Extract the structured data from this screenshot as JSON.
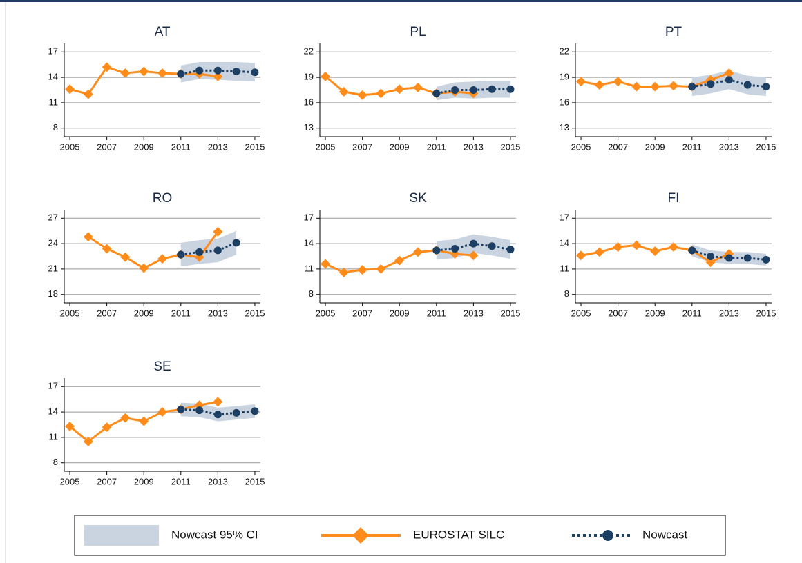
{
  "chart_data": [
    {
      "type": "line",
      "title": "AT",
      "xlim": [
        2004.7,
        2015.3
      ],
      "xticks": [
        2005,
        2007,
        2009,
        2011,
        2013,
        2015
      ],
      "ylim": [
        7,
        18
      ],
      "yticks": [
        8,
        11,
        14,
        17
      ],
      "grid": true,
      "series": [
        {
          "name": "Nowcast 95% CI",
          "color": "#c9d4e0",
          "x": [
            2011,
            2012,
            2013,
            2014,
            2015
          ],
          "lower": [
            13.4,
            13.8,
            13.7,
            13.6,
            13.5
          ],
          "upper": [
            15.4,
            15.8,
            15.8,
            15.8,
            15.7
          ]
        },
        {
          "name": "EUROSTAT SILC",
          "color": "#ff8c1a",
          "x": [
            2005,
            2006,
            2007,
            2008,
            2009,
            2010,
            2011,
            2012,
            2013
          ],
          "values": [
            12.6,
            12.0,
            15.2,
            14.5,
            14.7,
            14.5,
            14.4,
            14.4,
            14.1
          ]
        },
        {
          "name": "Nowcast",
          "color": "#1c3f63",
          "x": [
            2011,
            2012,
            2013,
            2014,
            2015
          ],
          "values": [
            14.4,
            14.8,
            14.8,
            14.7,
            14.6
          ]
        }
      ]
    },
    {
      "type": "line",
      "title": "PL",
      "xlim": [
        2004.7,
        2015.3
      ],
      "xticks": [
        2005,
        2007,
        2009,
        2011,
        2013,
        2015
      ],
      "ylim": [
        12,
        23
      ],
      "yticks": [
        13,
        16,
        19,
        22
      ],
      "grid": true,
      "series": [
        {
          "name": "Nowcast 95% CI",
          "color": "#c9d4e0",
          "x": [
            2011,
            2012,
            2013,
            2014,
            2015
          ],
          "lower": [
            16.3,
            16.6,
            16.5,
            16.6,
            16.6
          ],
          "upper": [
            17.9,
            18.4,
            18.5,
            18.6,
            18.6
          ]
        },
        {
          "name": "EUROSTAT SILC",
          "color": "#ff8c1a",
          "x": [
            2005,
            2006,
            2007,
            2008,
            2009,
            2010,
            2011,
            2012,
            2013
          ],
          "values": [
            19.1,
            17.3,
            16.9,
            17.1,
            17.6,
            17.8,
            17.1,
            17.3,
            17.1
          ]
        },
        {
          "name": "Nowcast",
          "color": "#1c3f63",
          "x": [
            2011,
            2012,
            2013,
            2014,
            2015
          ],
          "values": [
            17.1,
            17.5,
            17.5,
            17.6,
            17.6
          ]
        }
      ]
    },
    {
      "type": "line",
      "title": "PT",
      "xlim": [
        2004.7,
        2015.3
      ],
      "xticks": [
        2005,
        2007,
        2009,
        2011,
        2013,
        2015
      ],
      "ylim": [
        12,
        23
      ],
      "yticks": [
        13,
        16,
        19,
        22
      ],
      "grid": true,
      "series": [
        {
          "name": "Nowcast 95% CI",
          "color": "#c9d4e0",
          "x": [
            2011,
            2012,
            2013,
            2014,
            2015
          ],
          "lower": [
            16.8,
            17.1,
            17.6,
            17.0,
            16.8
          ],
          "upper": [
            19.0,
            19.3,
            19.8,
            19.2,
            19.0
          ]
        },
        {
          "name": "EUROSTAT SILC",
          "color": "#ff8c1a",
          "x": [
            2005,
            2006,
            2007,
            2008,
            2009,
            2010,
            2011,
            2012,
            2013
          ],
          "values": [
            18.5,
            18.1,
            18.5,
            17.9,
            17.9,
            18.0,
            17.9,
            18.7,
            19.5
          ]
        },
        {
          "name": "Nowcast",
          "color": "#1c3f63",
          "x": [
            2011,
            2012,
            2013,
            2014,
            2015
          ],
          "values": [
            17.9,
            18.2,
            18.7,
            18.1,
            17.9
          ]
        }
      ]
    },
    {
      "type": "line",
      "title": "RO",
      "xlim": [
        2004.7,
        2015.3
      ],
      "xticks": [
        2005,
        2007,
        2009,
        2011,
        2013,
        2015
      ],
      "ylim": [
        17,
        28
      ],
      "yticks": [
        18,
        21,
        24,
        27
      ],
      "grid": true,
      "series": [
        {
          "name": "Nowcast 95% CI",
          "color": "#c9d4e0",
          "x": [
            2011,
            2012,
            2013,
            2014
          ],
          "lower": [
            21.3,
            21.6,
            21.8,
            22.7
          ],
          "upper": [
            24.1,
            24.4,
            24.6,
            25.5
          ]
        },
        {
          "name": "EUROSTAT SILC",
          "color": "#ff8c1a",
          "x": [
            2006,
            2007,
            2008,
            2009,
            2010,
            2011,
            2012,
            2013
          ],
          "values": [
            24.8,
            23.4,
            22.4,
            21.1,
            22.2,
            22.7,
            22.4,
            25.4
          ]
        },
        {
          "name": "Nowcast",
          "color": "#1c3f63",
          "x": [
            2011,
            2012,
            2013,
            2014
          ],
          "values": [
            22.7,
            23.0,
            23.2,
            24.1
          ]
        }
      ]
    },
    {
      "type": "line",
      "title": "SK",
      "xlim": [
        2004.7,
        2015.3
      ],
      "xticks": [
        2005,
        2007,
        2009,
        2011,
        2013,
        2015
      ],
      "ylim": [
        7,
        18
      ],
      "yticks": [
        8,
        11,
        14,
        17
      ],
      "grid": true,
      "series": [
        {
          "name": "Nowcast 95% CI",
          "color": "#c9d4e0",
          "x": [
            2011,
            2012,
            2013,
            2014,
            2015
          ],
          "lower": [
            12.1,
            12.3,
            12.9,
            12.6,
            12.2
          ],
          "upper": [
            14.3,
            14.5,
            15.1,
            14.8,
            14.4
          ]
        },
        {
          "name": "EUROSTAT SILC",
          "color": "#ff8c1a",
          "x": [
            2005,
            2006,
            2007,
            2008,
            2009,
            2010,
            2011,
            2012,
            2013
          ],
          "values": [
            11.6,
            10.6,
            10.9,
            11.0,
            12.0,
            13.0,
            13.2,
            12.8,
            12.6
          ]
        },
        {
          "name": "Nowcast",
          "color": "#1c3f63",
          "x": [
            2011,
            2012,
            2013,
            2014,
            2015
          ],
          "values": [
            13.2,
            13.4,
            14.0,
            13.7,
            13.3
          ]
        }
      ]
    },
    {
      "type": "line",
      "title": "FI",
      "xlim": [
        2004.7,
        2015.3
      ],
      "xticks": [
        2005,
        2007,
        2009,
        2011,
        2013,
        2015
      ],
      "ylim": [
        7,
        18
      ],
      "yticks": [
        8,
        11,
        14,
        17
      ],
      "grid": true,
      "series": [
        {
          "name": "Nowcast 95% CI",
          "color": "#c9d4e0",
          "x": [
            2011,
            2012,
            2013,
            2014,
            2015
          ],
          "lower": [
            12.5,
            11.8,
            11.6,
            11.6,
            11.4
          ],
          "upper": [
            13.9,
            13.2,
            13.0,
            13.0,
            12.8
          ]
        },
        {
          "name": "EUROSTAT SILC",
          "color": "#ff8c1a",
          "x": [
            2005,
            2006,
            2007,
            2008,
            2009,
            2010,
            2011,
            2012,
            2013
          ],
          "values": [
            12.6,
            13.0,
            13.6,
            13.8,
            13.1,
            13.6,
            13.2,
            11.8,
            12.8
          ]
        },
        {
          "name": "Nowcast",
          "color": "#1c3f63",
          "x": [
            2011,
            2012,
            2013,
            2014,
            2015
          ],
          "values": [
            13.2,
            12.5,
            12.3,
            12.3,
            12.1
          ]
        }
      ]
    },
    {
      "type": "line",
      "title": "SE",
      "xlim": [
        2004.7,
        2015.3
      ],
      "xticks": [
        2005,
        2007,
        2009,
        2011,
        2013,
        2015
      ],
      "ylim": [
        7,
        18
      ],
      "yticks": [
        8,
        11,
        14,
        17
      ],
      "grid": true,
      "series": [
        {
          "name": "Nowcast 95% CI",
          "color": "#c9d4e0",
          "x": [
            2011,
            2012,
            2013,
            2014,
            2015
          ],
          "lower": [
            13.5,
            13.4,
            12.9,
            13.1,
            13.3
          ],
          "upper": [
            15.1,
            15.0,
            14.5,
            14.7,
            14.9
          ]
        },
        {
          "name": "EUROSTAT SILC",
          "color": "#ff8c1a",
          "x": [
            2005,
            2006,
            2007,
            2008,
            2009,
            2010,
            2011,
            2012,
            2013
          ],
          "values": [
            12.3,
            10.5,
            12.2,
            13.3,
            12.9,
            14.0,
            14.3,
            14.8,
            15.2
          ]
        },
        {
          "name": "Nowcast",
          "color": "#1c3f63",
          "x": [
            2011,
            2012,
            2013,
            2014,
            2015
          ],
          "values": [
            14.3,
            14.2,
            13.7,
            13.9,
            14.1
          ]
        }
      ]
    }
  ]
}
